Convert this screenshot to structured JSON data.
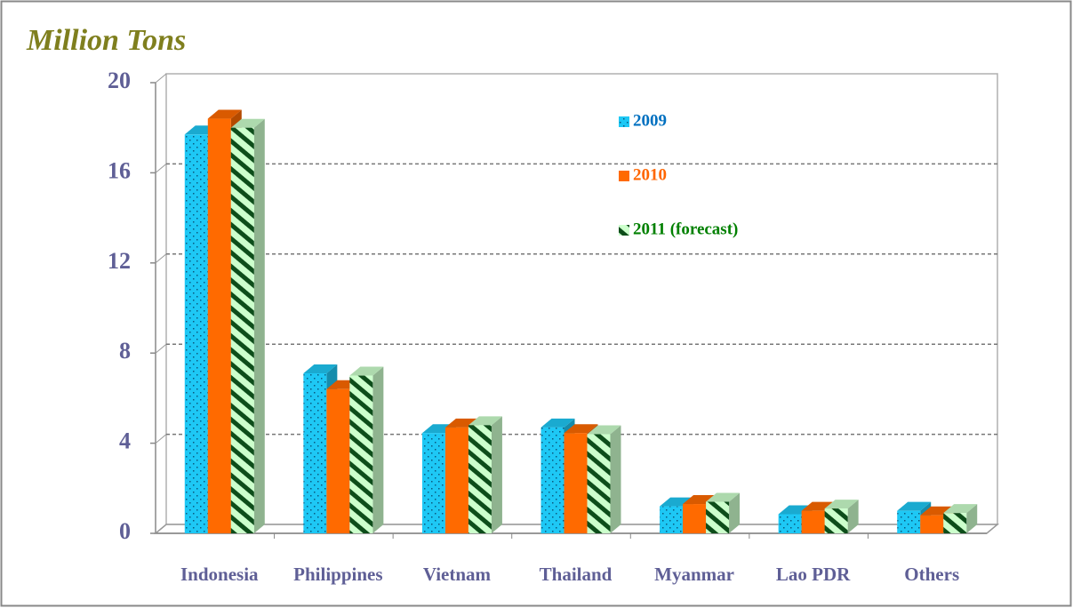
{
  "chart_data": {
    "type": "bar",
    "title": "Million Tons",
    "categories": [
      "Indonesia",
      "Philippines",
      "Vietnam",
      "Thailand",
      "Myanmar",
      "Lao PDR",
      "Others"
    ],
    "series": [
      {
        "name": "2009",
        "color": "#1ec8f5",
        "text_color": "#0070c0",
        "values": [
          17.7,
          7.1,
          4.45,
          4.7,
          1.2,
          0.85,
          1.0
        ]
      },
      {
        "name": "2010",
        "color": "#ff6a00",
        "text_color": "#ff6600",
        "values": [
          18.4,
          6.4,
          4.7,
          4.45,
          1.3,
          1.0,
          0.8
        ]
      },
      {
        "name": "2011 (forecast)",
        "color": "#ccffcc",
        "text_color": "#008000",
        "values": [
          18.0,
          7.0,
          4.8,
          4.4,
          1.4,
          1.1,
          0.9
        ]
      }
    ],
    "ylim": [
      0,
      20
    ],
    "yticks": [
      0,
      4,
      8,
      12,
      16,
      20
    ],
    "grid": true
  }
}
